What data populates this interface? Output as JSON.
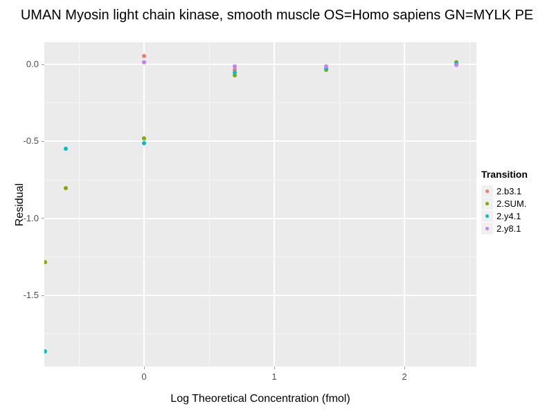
{
  "title": "UMAN Myosin light chain kinase, smooth muscle OS=Homo sapiens GN=MYLK PE",
  "chart_data": {
    "type": "scatter",
    "title": "UMAN Myosin light chain kinase, smooth muscle OS=Homo sapiens GN=MYLK PE",
    "xlabel": "Log Theoretical Concentration (fmol)",
    "ylabel": "Residual",
    "xlim": [
      -0.766,
      2.553
    ],
    "ylim": [
      -1.962,
      0.144
    ],
    "x_major_ticks": [
      0,
      1,
      2
    ],
    "x_tick_labels": [
      "0",
      "1",
      "2"
    ],
    "x_minor_ticks": [
      -0.5,
      0.5,
      1.5,
      2.5
    ],
    "y_major_ticks": [
      0,
      -0.5,
      -1.0,
      -1.5
    ],
    "y_tick_labels": [
      "0.0",
      "-0.5",
      "-1.0",
      "-1.5"
    ],
    "y_minor_ticks": [
      -0.25,
      -0.75,
      -1.25,
      -1.75
    ],
    "grid": true,
    "panel_bg": "#EBEBEB",
    "grid_color": "#FFFFFF",
    "legend_position": "right",
    "legend_title": "Transition",
    "series": [
      {
        "name": "2.b3.1",
        "color": "#F8766D",
        "points": [
          [
            0,
            0.055
          ],
          [
            0.699,
            -0.035
          ]
        ]
      },
      {
        "name": "2.SUM.",
        "color": "#7CAE00",
        "points": [
          [
            -0.76,
            -1.285
          ],
          [
            -0.602,
            -0.805
          ],
          [
            0,
            -0.48
          ],
          [
            0.699,
            -0.073
          ],
          [
            1.398,
            -0.035
          ],
          [
            2.398,
            0.015
          ]
        ]
      },
      {
        "name": "2.y4.1",
        "color": "#00BFC4",
        "points": [
          [
            -0.76,
            -1.865
          ],
          [
            -0.602,
            -0.548
          ],
          [
            0,
            -0.512
          ],
          [
            0.699,
            -0.055
          ],
          [
            1.398,
            -0.025
          ],
          [
            2.398,
            0.005
          ]
        ]
      },
      {
        "name": "2.y8.1",
        "color": "#C77CFF",
        "points": [
          [
            0,
            0.015
          ],
          [
            0.699,
            -0.012
          ],
          [
            1.398,
            -0.015
          ],
          [
            2.398,
            -0.005
          ]
        ]
      }
    ]
  }
}
